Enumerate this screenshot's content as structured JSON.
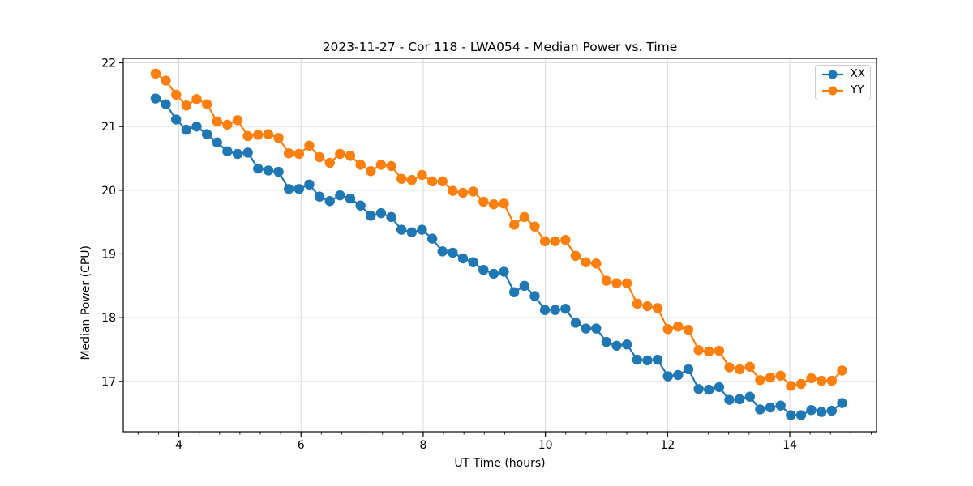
{
  "figure": {
    "background": "#ffffff"
  },
  "chart_data": {
    "type": "line",
    "title": "2023-11-27 - Cor 118 - LWA054 - Median Power vs. Time",
    "xlabel": "UT Time (hours)",
    "ylabel": "Median Power (CPU)",
    "xlim": [
      3.09,
      15.42
    ],
    "ylim": [
      16.21,
      22.07
    ],
    "x_ticks": [
      4,
      6,
      8,
      10,
      12,
      14
    ],
    "x_tick_labels": [
      "4",
      "6",
      "8",
      "10",
      "12",
      "14"
    ],
    "x_minor_step": 0.33333,
    "y_ticks": [
      17,
      18,
      19,
      20,
      21,
      22
    ],
    "y_tick_labels": [
      "17",
      "18",
      "19",
      "20",
      "21",
      "22"
    ],
    "grid": true,
    "legend_position": "upper right",
    "x_start": 3.62,
    "x_step": 0.1677,
    "series": [
      {
        "name": "XX",
        "color": "#1f77b4",
        "values": [
          21.44,
          21.35,
          21.11,
          20.95,
          21.0,
          20.88,
          20.75,
          20.61,
          20.57,
          20.59,
          20.34,
          20.31,
          20.29,
          20.02,
          20.02,
          20.09,
          19.9,
          19.83,
          19.92,
          19.87,
          19.76,
          19.6,
          19.64,
          19.58,
          19.38,
          19.34,
          19.38,
          19.24,
          19.04,
          19.02,
          18.93,
          18.87,
          18.75,
          18.69,
          18.72,
          18.4,
          18.5,
          18.34,
          18.12,
          18.12,
          18.14,
          17.92,
          17.83,
          17.83,
          17.62,
          17.56,
          17.58,
          17.34,
          17.33,
          17.34,
          17.08,
          17.1,
          17.19,
          16.88,
          16.87,
          16.91,
          16.71,
          16.72,
          16.76,
          16.56,
          16.59,
          16.62,
          16.47,
          16.47,
          16.55,
          16.52,
          16.54,
          16.66
        ]
      },
      {
        "name": "YY",
        "color": "#ff7f0e",
        "values": [
          21.83,
          21.72,
          21.5,
          21.33,
          21.43,
          21.35,
          21.08,
          21.03,
          21.1,
          20.85,
          20.87,
          20.88,
          20.82,
          20.58,
          20.57,
          20.7,
          20.52,
          20.43,
          20.57,
          20.54,
          20.4,
          20.3,
          20.4,
          20.38,
          20.18,
          20.16,
          20.24,
          20.14,
          20.14,
          19.99,
          19.96,
          19.98,
          19.82,
          19.78,
          19.79,
          19.46,
          19.58,
          19.43,
          19.2,
          19.2,
          19.22,
          18.97,
          18.87,
          18.85,
          18.58,
          18.54,
          18.54,
          18.22,
          18.18,
          18.15,
          17.82,
          17.86,
          17.81,
          17.49,
          17.47,
          17.48,
          17.22,
          17.19,
          17.23,
          17.02,
          17.06,
          17.09,
          16.93,
          16.96,
          17.05,
          17.01,
          17.01,
          17.17
        ]
      }
    ],
    "style": {
      "grid_color": "#d9d9d9",
      "spine_color": "#000000",
      "tick_color": "#000000",
      "legend_border": "#cccccc",
      "marker_radius": 6.2,
      "line_width": 2.2
    }
  }
}
